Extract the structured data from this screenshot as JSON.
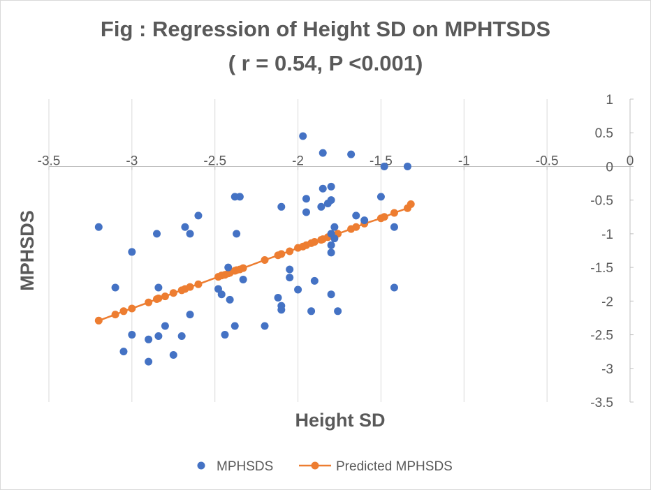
{
  "chart_data": {
    "type": "scatter",
    "title_line1": "Fig : Regression of Height SD on MPHTSDS",
    "title_line2": "( r = 0.54, P <0.001)",
    "xlabel": "Height SD",
    "ylabel": "MPHSDS",
    "xlim": [
      -3.5,
      0
    ],
    "ylim": [
      -3.5,
      1
    ],
    "x_ticks": [
      -3.5,
      -3,
      -2.5,
      -2,
      -1.5,
      -1,
      -0.5,
      0
    ],
    "x_tick_labels": [
      "-3.5",
      "-3",
      "-2.5",
      "-2",
      "-1.5",
      "-1",
      "-0.5",
      "0"
    ],
    "y_ticks": [
      1,
      0.5,
      0,
      -0.5,
      -1,
      -1.5,
      -2,
      -2.5,
      -3,
      -3.5
    ],
    "y_tick_labels": [
      "1",
      "0.5",
      "0",
      "-0.5",
      "-1",
      "-1.5",
      "-2",
      "-2.5",
      "-3",
      "-3.5"
    ],
    "grid": "vertical",
    "legend": "bottom",
    "series": [
      {
        "name": "MPHSDS",
        "color": "#4472c4",
        "style": "markers",
        "points": [
          [
            -3.2,
            -0.9
          ],
          [
            -3.1,
            -1.8
          ],
          [
            -3.0,
            -1.27
          ],
          [
            -2.85,
            -1.0
          ],
          [
            -2.84,
            -1.8
          ],
          [
            -2.8,
            -2.37
          ],
          [
            -2.84,
            -2.52
          ],
          [
            -3.0,
            -2.5
          ],
          [
            -3.05,
            -2.75
          ],
          [
            -2.9,
            -2.57
          ],
          [
            -2.9,
            -2.9
          ],
          [
            -2.75,
            -2.8
          ],
          [
            -2.68,
            -0.9
          ],
          [
            -2.65,
            -1.0
          ],
          [
            -2.6,
            -0.73
          ],
          [
            -2.7,
            -2.52
          ],
          [
            -2.65,
            -2.2
          ],
          [
            -2.48,
            -1.82
          ],
          [
            -2.46,
            -1.9
          ],
          [
            -2.41,
            -1.98
          ],
          [
            -2.42,
            -1.5
          ],
          [
            -2.38,
            -0.45
          ],
          [
            -2.35,
            -0.45
          ],
          [
            -2.37,
            -1.0
          ],
          [
            -2.33,
            -1.68
          ],
          [
            -2.38,
            -2.37
          ],
          [
            -2.44,
            -2.5
          ],
          [
            -2.2,
            -2.37
          ],
          [
            -2.1,
            -0.6
          ],
          [
            -2.12,
            -1.95
          ],
          [
            -2.1,
            -2.07
          ],
          [
            -2.1,
            -2.13
          ],
          [
            -2.05,
            -1.53
          ],
          [
            -2.05,
            -1.65
          ],
          [
            -2.0,
            -1.83
          ],
          [
            -1.97,
            0.45
          ],
          [
            -1.95,
            -0.48
          ],
          [
            -1.95,
            -0.68
          ],
          [
            -1.9,
            -1.7
          ],
          [
            -1.92,
            -2.15
          ],
          [
            -1.85,
            0.2
          ],
          [
            -1.85,
            -0.33
          ],
          [
            -1.86,
            -0.6
          ],
          [
            -1.8,
            -0.3
          ],
          [
            -1.82,
            -0.55
          ],
          [
            -1.8,
            -0.5
          ],
          [
            -1.78,
            -0.9
          ],
          [
            -1.8,
            -1.0
          ],
          [
            -1.78,
            -1.07
          ],
          [
            -1.8,
            -1.17
          ],
          [
            -1.8,
            -1.28
          ],
          [
            -1.8,
            -1.9
          ],
          [
            -1.76,
            -2.15
          ],
          [
            -1.68,
            0.18
          ],
          [
            -1.65,
            -0.73
          ],
          [
            -1.6,
            -0.8
          ],
          [
            -1.48,
            0.0
          ],
          [
            -1.5,
            -0.45
          ],
          [
            -1.42,
            -0.9
          ],
          [
            -1.42,
            -1.8
          ],
          [
            -1.34,
            0.0
          ]
        ]
      },
      {
        "name": "Predicted MPHSDS",
        "color": "#ed7d31",
        "style": "line-markers",
        "points": [
          [
            -3.2,
            -2.29
          ],
          [
            -3.1,
            -2.2
          ],
          [
            -3.05,
            -2.15
          ],
          [
            -3.0,
            -2.11
          ],
          [
            -2.9,
            -2.02
          ],
          [
            -2.85,
            -1.97
          ],
          [
            -2.84,
            -1.96
          ],
          [
            -2.8,
            -1.93
          ],
          [
            -2.75,
            -1.88
          ],
          [
            -2.7,
            -1.84
          ],
          [
            -2.68,
            -1.82
          ],
          [
            -2.65,
            -1.79
          ],
          [
            -2.6,
            -1.75
          ],
          [
            -2.48,
            -1.64
          ],
          [
            -2.46,
            -1.62
          ],
          [
            -2.44,
            -1.61
          ],
          [
            -2.42,
            -1.59
          ],
          [
            -2.41,
            -1.58
          ],
          [
            -2.38,
            -1.55
          ],
          [
            -2.37,
            -1.54
          ],
          [
            -2.35,
            -1.53
          ],
          [
            -2.33,
            -1.51
          ],
          [
            -2.2,
            -1.39
          ],
          [
            -2.12,
            -1.32
          ],
          [
            -2.1,
            -1.3
          ],
          [
            -2.05,
            -1.26
          ],
          [
            -2.0,
            -1.21
          ],
          [
            -1.97,
            -1.19
          ],
          [
            -1.95,
            -1.17
          ],
          [
            -1.92,
            -1.14
          ],
          [
            -1.9,
            -1.12
          ],
          [
            -1.86,
            -1.09
          ],
          [
            -1.85,
            -1.08
          ],
          [
            -1.82,
            -1.05
          ],
          [
            -1.8,
            -1.03
          ],
          [
            -1.78,
            -1.02
          ],
          [
            -1.76,
            -1.0
          ],
          [
            -1.68,
            -0.93
          ],
          [
            -1.65,
            -0.9
          ],
          [
            -1.6,
            -0.85
          ],
          [
            -1.5,
            -0.77
          ],
          [
            -1.48,
            -0.75
          ],
          [
            -1.42,
            -0.69
          ],
          [
            -1.34,
            -0.62
          ],
          [
            -1.32,
            -0.56
          ]
        ]
      }
    ]
  }
}
